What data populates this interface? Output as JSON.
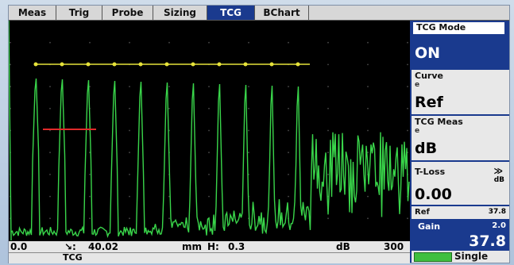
{
  "tabs": [
    {
      "label": "Meas",
      "active": false
    },
    {
      "label": "Trig",
      "active": false
    },
    {
      "label": "Probe",
      "active": false
    },
    {
      "label": "Sizing",
      "active": false
    },
    {
      "label": "TCG",
      "active": true
    },
    {
      "label": "BChart",
      "active": false
    }
  ],
  "panel": {
    "tcg_mode": {
      "label": "TCG Mode",
      "value": "ON"
    },
    "curve": {
      "label": "Curve",
      "sub": "e",
      "value": "Ref"
    },
    "tcg_meas": {
      "label": "TCG Meas",
      "sub": "e",
      "value": "dB"
    },
    "t_loss": {
      "label": "T-Loss",
      "icon": "double-chevron-right-icon",
      "unit": "dB",
      "value": "0.00"
    },
    "ref": {
      "label": "Ref",
      "value": "37.8"
    },
    "gain": {
      "label": "Gain",
      "step": "2.0",
      "value": "37.8"
    },
    "battery": {
      "label": "Single"
    }
  },
  "readout": {
    "left_value": "0.0",
    "sound_path_icon": "sound-path-icon",
    "sound_path": "40.02",
    "unit": "mm",
    "h_label": "H:",
    "h_value": "0.3",
    "db_label": "dB",
    "right_value": "300"
  },
  "status": {
    "mode": "TCG"
  },
  "colors": {
    "wave": "#39d54a",
    "tcg_line": "#e6e23a",
    "reference": "#e02a2a",
    "accent": "#1a3a8e",
    "background": "#000000"
  }
}
